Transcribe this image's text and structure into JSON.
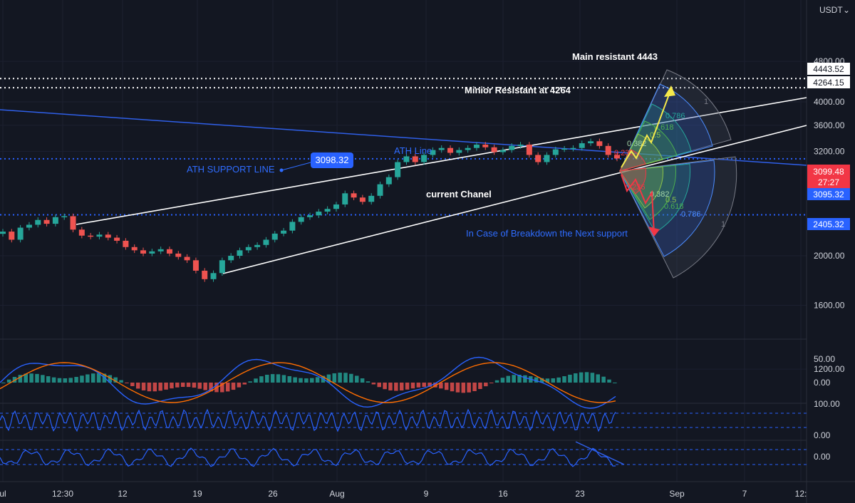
{
  "currency_label": "USDT",
  "colors": {
    "background": "#131722",
    "grid": "#1f2433",
    "bull": "#26a69a",
    "bear": "#ef5350",
    "blue": "#2962ff",
    "ath_line": "#2f5fe8",
    "white": "#ffffff",
    "yellow": "#f5e94b",
    "pink": "#f23645",
    "macd_line": "#2962ff",
    "signal_line": "#ff6d00"
  },
  "chart_data": {
    "type": "candlestick",
    "x_tick_labels": [
      "ul",
      "12:30",
      "12",
      "19",
      "26",
      "Aug",
      "9",
      "16",
      "23",
      "Sep",
      "7",
      "12:"
    ],
    "y_tick_labels": [
      "4800.00",
      "4000.00",
      "3600.00",
      "3200.00",
      "2000.00",
      "1600.00",
      "1200.00"
    ],
    "y_scale": "log",
    "y_ticks_values": [
      4800,
      4000,
      3600,
      3200,
      2000,
      1600,
      1200
    ],
    "price_lines": [
      {
        "value": 4443.52,
        "label": "4443.52",
        "style": "dotted",
        "color": "#ffffff"
      },
      {
        "value": 4264.15,
        "label": "4264.15",
        "style": "dotted",
        "color": "#ffffff"
      },
      {
        "value": 3095.32,
        "label": "3095.32",
        "style": "dotted",
        "color": "#2962ff"
      },
      {
        "value": 2405.32,
        "label": "2405.32",
        "style": "dotted",
        "color": "#2962ff"
      }
    ],
    "last_price": {
      "value": "3099.48",
      "countdown": "27:27"
    },
    "callout": "3098.32",
    "annotations": {
      "main_resistant": "Main resistant 4443",
      "minior_resistant": "Minior Resistant at 4264",
      "ath_line": "ATH Line",
      "ath_support": "ATH SUPPORT LINE",
      "current_chanel": "current  Chanel",
      "breakdown": "In Case of Breakdown the Next support"
    },
    "fib_upper": [
      "0.236",
      "0.382",
      "0.5",
      "0.618",
      "0.786",
      "1"
    ],
    "fib_lower": [
      "0.236",
      "0.382",
      "0.5",
      "0.618",
      "0.786",
      "1"
    ],
    "candles_close": [
      2230,
      2150,
      2270,
      2300,
      2350,
      2310,
      2380,
      2390,
      2250,
      2190,
      2180,
      2200,
      2170,
      2140,
      2080,
      2050,
      2020,
      2040,
      2060,
      2020,
      1990,
      1960,
      1870,
      1800,
      1850,
      1960,
      2000,
      2050,
      2080,
      2100,
      2150,
      2210,
      2240,
      2330,
      2380,
      2400,
      2440,
      2470,
      2520,
      2650,
      2600,
      2550,
      2620,
      2760,
      2850,
      3050,
      3130,
      3050,
      3150,
      3220,
      3250,
      3180,
      3220,
      3250,
      3300,
      3260,
      3190,
      3220,
      3280,
      3300,
      3150,
      3050,
      3150,
      3230,
      3240,
      3250,
      3320,
      3350,
      3280,
      3150,
      3100
    ]
  },
  "macd_panel": {
    "y_labels": [
      "50.00",
      "0.00"
    ]
  },
  "rsi_panel": {
    "y_labels": [
      "100.00",
      "0.00"
    ]
  },
  "osc_panel": {
    "y_labels": [
      "0.00"
    ]
  }
}
